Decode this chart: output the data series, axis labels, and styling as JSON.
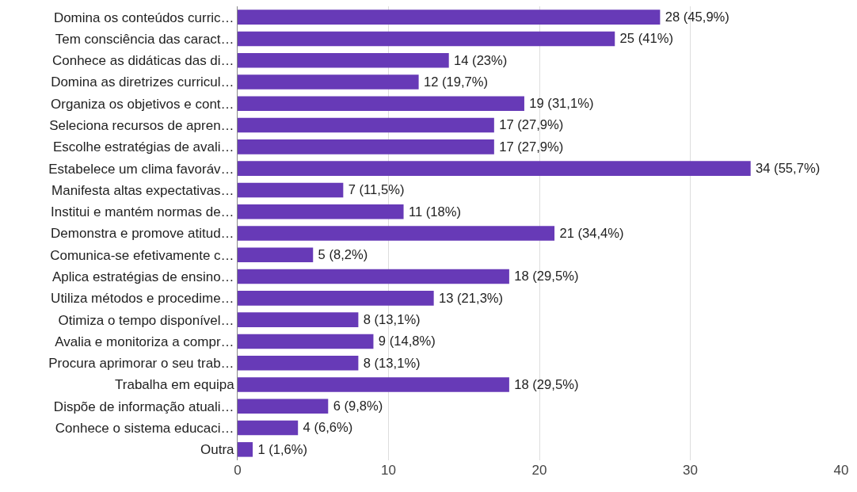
{
  "chart_data": {
    "type": "bar",
    "orientation": "horizontal",
    "categories": [
      "Domina os conteúdos curric…",
      "Tem consciência das caract…",
      "Conhece as didáticas das di…",
      "Domina as diretrizes curricul…",
      "Organiza os objetivos e cont…",
      "Seleciona recursos de apren…",
      "Escolhe estratégias de avali…",
      "Estabelece um clima favoráv…",
      "Manifesta altas expectativas…",
      "Institui e mantém normas de…",
      "Demonstra e promove atitud…",
      "Comunica-se efetivamente c…",
      "Aplica estratégias de ensino…",
      "Utiliza métodos e procedime…",
      "Otimiza o tempo disponível…",
      "Avalia e monitoriza a compr…",
      "Procura aprimorar o seu trab…",
      "Trabalha em equipa",
      "Dispõe de informação atuali…",
      "Conhece o sistema educaci…",
      "Outra"
    ],
    "values": [
      28,
      25,
      14,
      12,
      19,
      17,
      17,
      34,
      7,
      11,
      21,
      5,
      18,
      13,
      8,
      9,
      8,
      18,
      6,
      4,
      1
    ],
    "value_labels": [
      "28 (45,9%)",
      "25 (41%)",
      "14 (23%)",
      "12 (19,7%)",
      "19 (31,1%)",
      "17 (27,9%)",
      "17 (27,9%)",
      "34 (55,7%)",
      "7 (11,5%)",
      "11 (18%)",
      "21 (34,4%)",
      "5 (8,2%)",
      "18 (29,5%)",
      "13 (21,3%)",
      "8 (13,1%)",
      "9 (14,8%)",
      "8 (13,1%)",
      "18 (29,5%)",
      "6 (9,8%)",
      "4 (6,6%)",
      "1 (1,6%)"
    ],
    "color": "#673ab7",
    "xlim": [
      0,
      40
    ],
    "xticks": [
      0,
      10,
      20,
      30,
      40
    ],
    "grid": "x"
  }
}
